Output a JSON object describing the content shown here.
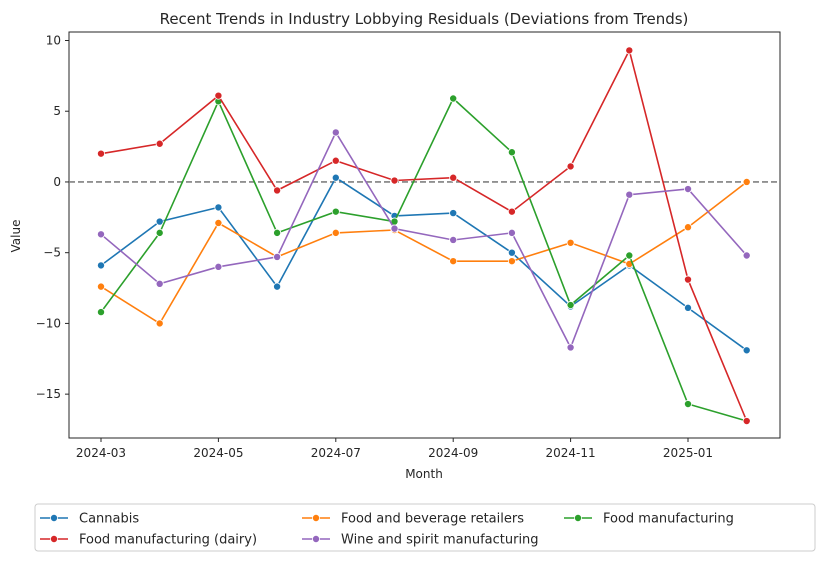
{
  "chart_data": {
    "type": "line",
    "title": "Recent Trends in Industry Lobbying Residuals (Deviations from Trends)",
    "xlabel": "Month",
    "ylabel": "Value",
    "x": [
      "2024-03",
      "2024-04",
      "2024-05",
      "2024-06",
      "2024-07",
      "2024-08",
      "2024-09",
      "2024-10",
      "2024-11",
      "2024-12",
      "2025-01",
      "2025-02"
    ],
    "x_tick_labels": [
      "2024-03",
      "2024-05",
      "2024-07",
      "2024-09",
      "2024-11",
      "2025-01"
    ],
    "x_tick_positions": [
      "2024-03",
      "2024-05",
      "2024-07",
      "2024-09",
      "2024-11",
      "2025-01"
    ],
    "y_ticks": [
      10,
      5,
      0,
      -5,
      -10,
      -15
    ],
    "y_tick_labels": [
      "10",
      "5",
      "0",
      "−5",
      "−10",
      "−15"
    ],
    "ylim": [
      -18.1,
      10.6
    ],
    "reference_line": {
      "y": 0,
      "style": "dashed",
      "color": "#808080"
    },
    "grid": false,
    "legend_position": "bottom-center",
    "series": [
      {
        "name": "Cannabis",
        "color": "#1f77b4",
        "values": [
          -5.9,
          -2.8,
          -1.8,
          -7.4,
          0.3,
          -2.4,
          -2.2,
          -5.0,
          -8.8,
          -5.9,
          -8.9,
          -11.9
        ]
      },
      {
        "name": "Food and beverage retailers",
        "color": "#ff7f0e",
        "values": [
          -7.4,
          -10.0,
          -2.9,
          -5.3,
          -3.6,
          -3.4,
          -5.6,
          -5.6,
          -4.3,
          -5.8,
          -3.2,
          0.0
        ]
      },
      {
        "name": "Food manufacturing",
        "color": "#2ca02c",
        "values": [
          -9.2,
          -3.6,
          5.7,
          -3.6,
          -2.1,
          -2.8,
          5.9,
          2.1,
          -8.7,
          -5.2,
          -15.7,
          -16.9
        ]
      },
      {
        "name": "Food manufacturing (dairy)",
        "color": "#d62728",
        "values": [
          2.0,
          2.7,
          6.1,
          -0.6,
          1.5,
          0.1,
          0.3,
          -2.1,
          1.1,
          9.3,
          -6.9,
          -16.9
        ]
      },
      {
        "name": "Wine and spirit manufacturing",
        "color": "#9467bd",
        "values": [
          -3.7,
          -7.2,
          -6.0,
          -5.3,
          3.5,
          -3.3,
          -4.1,
          -3.6,
          -11.7,
          -0.9,
          -0.5,
          -5.2
        ]
      }
    ]
  }
}
